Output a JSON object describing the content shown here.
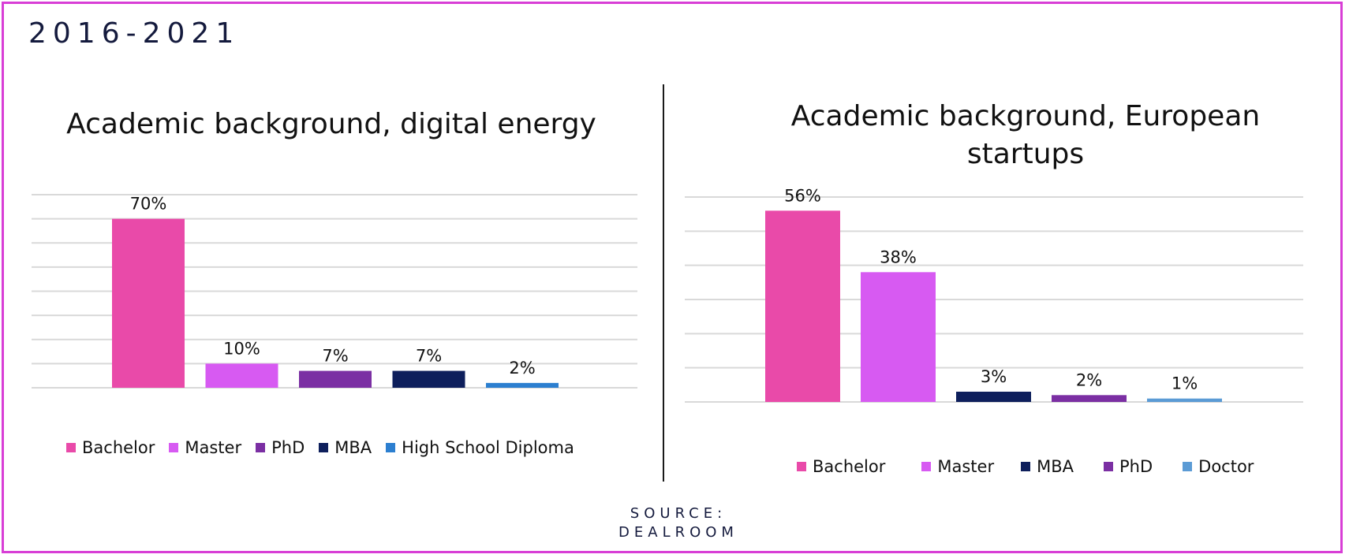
{
  "period": "2016-2021",
  "source": {
    "line1": "SOURCE:",
    "line2": "DEALROOM"
  },
  "chart_data": [
    {
      "type": "bar",
      "title": "Academic background, digital energy",
      "categories": [
        "Bachelor",
        "Master",
        "PhD",
        "MBA",
        "High School Diploma"
      ],
      "values": [
        70,
        10,
        7,
        7,
        2
      ],
      "labels": [
        "70%",
        "10%",
        "7%",
        "7%",
        "2%"
      ],
      "colors": [
        "#e94aa9",
        "#d75af2",
        "#7b2fa3",
        "#0e1f5c",
        "#2c7fd0"
      ],
      "ylim": [
        0,
        80
      ],
      "grid": true,
      "legend": "bottom"
    },
    {
      "type": "bar",
      "title": "Academic background, European startups",
      "categories": [
        "Bachelor",
        "Master",
        "MBA",
        "PhD",
        "Doctor"
      ],
      "values": [
        56,
        38,
        3,
        2,
        1
      ],
      "labels": [
        "56%",
        "38%",
        "3%",
        "2%",
        "1%"
      ],
      "colors": [
        "#e94aa9",
        "#d75af2",
        "#0e1f5c",
        "#7b2fa3",
        "#5b9bd5"
      ],
      "ylim": [
        0,
        60
      ],
      "grid": true,
      "legend": "bottom"
    }
  ]
}
